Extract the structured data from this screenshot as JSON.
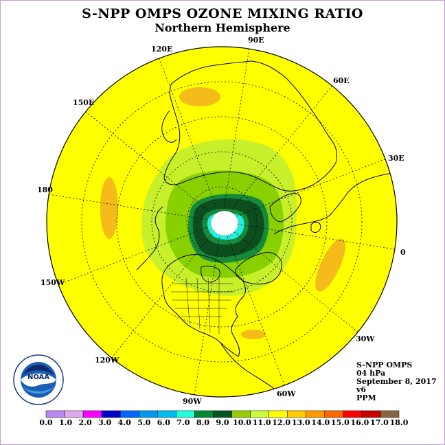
{
  "header": {
    "title": "S-NPP OMPS OZONE MIXING RATIO",
    "subtitle": "Northern Hemisphere"
  },
  "longitudes": [
    "90E",
    "60E",
    "30E",
    "0",
    "30W",
    "60W",
    "90W",
    "120W",
    "150W",
    "180",
    "150E",
    "120E"
  ],
  "info": {
    "instrument": "S-NPP OMPS",
    "pressure": "04 hPa",
    "date": "September 8, 2017",
    "version": "v6",
    "units": "PPM"
  },
  "logo": {
    "name": "NOAA",
    "ring_text": "NATIONAL OCEANIC AND ATMOSPHERIC ADMINISTRATION · U.S. DEPARTMENT OF COMMERCE"
  },
  "color_scale": {
    "labels": [
      "0.0",
      "1.0",
      "2.0",
      "3.0",
      "4.0",
      "5.0",
      "6.0",
      "7.0",
      "8.0",
      "9.0",
      "10.0",
      "11.0",
      "12.0",
      "13.0",
      "14.0",
      "15.0",
      "16.0",
      "17.0",
      "18.0"
    ],
    "colors": [
      "#bb88ee",
      "#ddaaee",
      "#ff00ff",
      "#0000cc",
      "#0066ff",
      "#0099ee",
      "#00bbee",
      "#22ffdd",
      "#008833",
      "#005522",
      "#99cc00",
      "#ccff33",
      "#ffff00",
      "#ffcc00",
      "#ff9900",
      "#ff6600",
      "#ff0000",
      "#cc0000",
      "#886644"
    ]
  },
  "colors": {
    "background_field": "#ffff00",
    "orange_field": "#f5bb1a",
    "dark_green": "#0d4d1e",
    "green": "#168a3c",
    "lime": "#88d000",
    "light_lime": "#c8f02a",
    "cyan": "#22eedd",
    "frame": "#c4a0d0"
  }
}
